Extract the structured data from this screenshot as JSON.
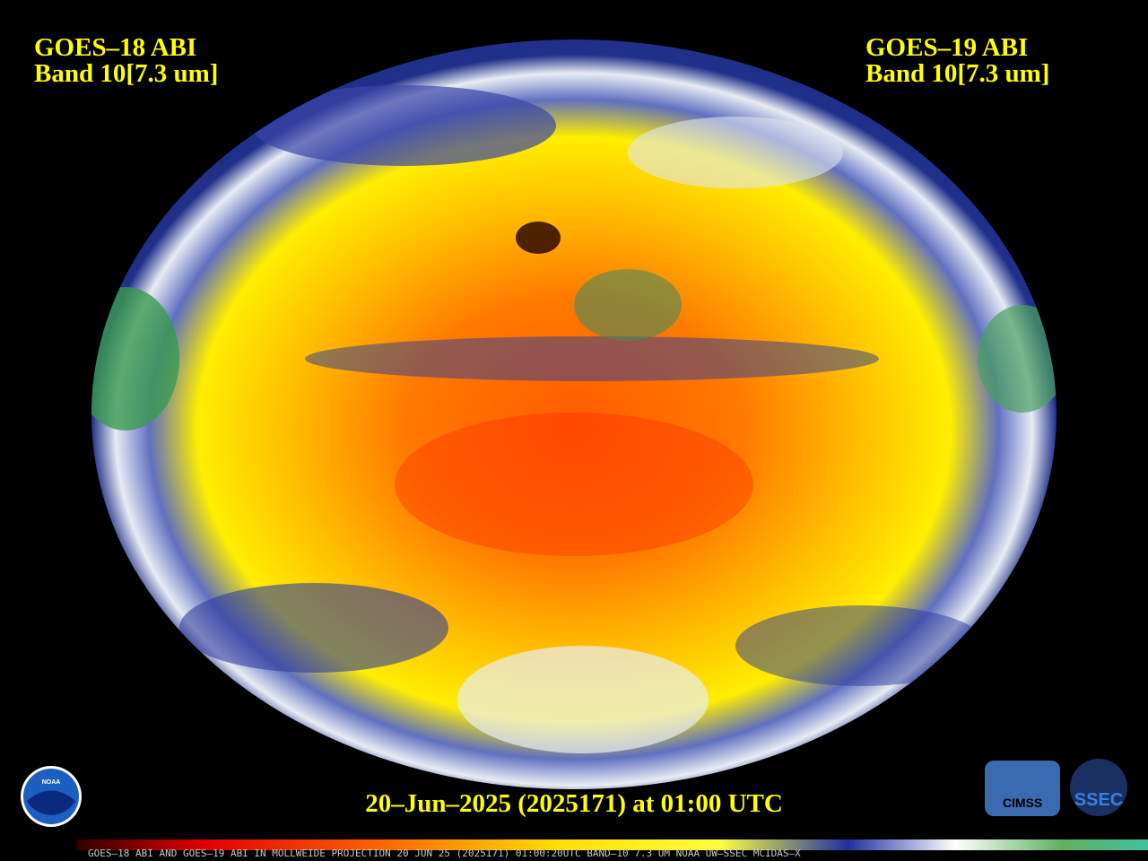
{
  "left_label": {
    "satellite": "GOES–18 ABI",
    "band": "Band 10[7.3 um]"
  },
  "right_label": {
    "satellite": "GOES–19 ABI",
    "band": "Band 10[7.3 um]"
  },
  "timestamp": "20–Jun–2025 (2025171) at 01:00 UTC",
  "footer": "GOES–18 ABI AND GOES–19 ABI IN MOLLWEIDE PROJECTION 20 JUN 25 (2025171) 01:00:20UTC BAND–10 7.3 UM NOAA UW–SSEC MCIDAS–X",
  "logos": {
    "noaa": "NOAA",
    "cimss": "CIMSS",
    "ssec": "SSEC"
  }
}
